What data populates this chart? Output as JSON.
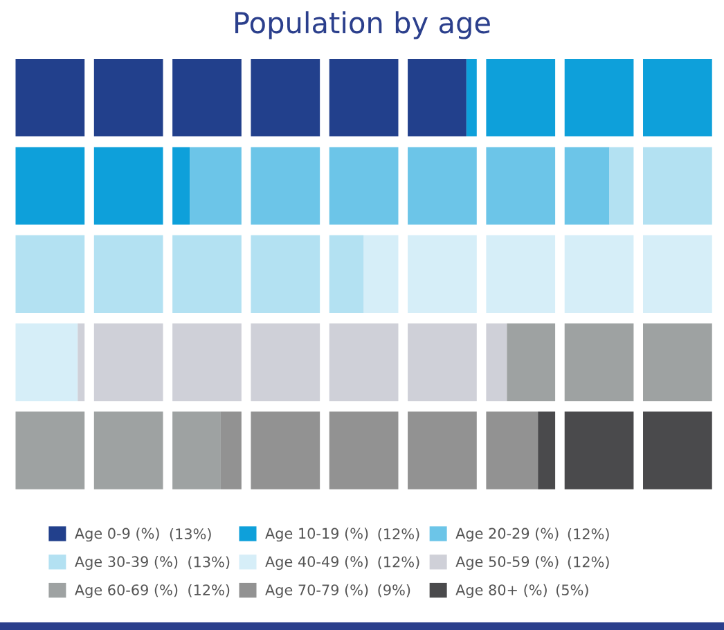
{
  "chart_data": {
    "type": "other",
    "title": "Population by age",
    "categories": [
      "Age 0-9 (%)",
      "Age 10-19 (%)",
      "Age 20-29 (%)",
      "Age 30-39 (%)",
      "Age 40-49 (%)",
      "Age 50-59 (%)",
      "Age 60-69 (%)",
      "Age 70-79 (%)",
      "Age 80+ (%)"
    ],
    "values": [
      13,
      12,
      12,
      13,
      12,
      12,
      12,
      9,
      5
    ],
    "value_labels": [
      "(13%)",
      "(12%)",
      "(12%)",
      "(13%)",
      "(12%)",
      "(12%)",
      "(12%)",
      "(9%)",
      "(5%)"
    ],
    "colors": [
      "#22408c",
      "#0ea0da",
      "#6cc5e8",
      "#b3e1f2",
      "#d6eef8",
      "#cfd0d8",
      "#9ea2a2",
      "#929292",
      "#4a4a4c"
    ]
  }
}
